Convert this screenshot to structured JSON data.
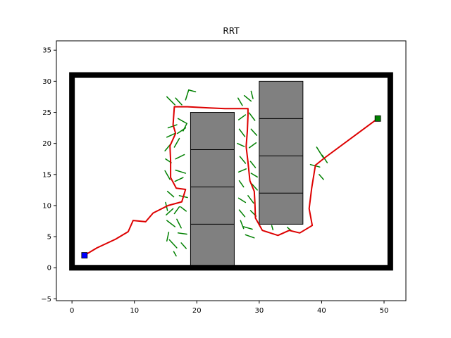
{
  "chart_data": {
    "type": "scatter",
    "title": "RRT",
    "xlabel": "",
    "ylabel": "",
    "xlim": [
      -2.5,
      53.5
    ],
    "ylim": [
      -5.3,
      36.5
    ],
    "xticks": [
      0,
      10,
      20,
      30,
      40,
      50
    ],
    "yticks": [
      -5,
      0,
      5,
      10,
      15,
      20,
      25,
      30,
      35
    ],
    "grid": false,
    "legend": "none",
    "colors": {
      "boundary": "#000000",
      "obstacle_fill": "#808080",
      "tree": "#008000",
      "path": "#dd0000",
      "start": "#0000ff",
      "goal": "#008000"
    },
    "boundary": {
      "x": [
        0,
        51
      ],
      "y": [
        0,
        31
      ]
    },
    "obstacles": [
      {
        "x": [
          19,
          26
        ],
        "y": [
          0,
          25
        ]
      },
      {
        "x": [
          30,
          37
        ],
        "y": [
          7,
          30
        ]
      }
    ],
    "obstacle_dividers": [
      {
        "x": [
          19,
          26
        ],
        "y": 19
      },
      {
        "x": [
          19,
          26
        ],
        "y": 13
      },
      {
        "x": [
          19,
          26
        ],
        "y": 7
      },
      {
        "x": [
          30,
          37
        ],
        "y": 24
      },
      {
        "x": [
          30,
          37
        ],
        "y": 18
      },
      {
        "x": [
          30,
          37
        ],
        "y": 12
      }
    ],
    "start": [
      2,
      2
    ],
    "goal": [
      49,
      24
    ],
    "path": [
      [
        2,
        2
      ],
      [
        4,
        3.2
      ],
      [
        7,
        4.6
      ],
      [
        9,
        5.8
      ],
      [
        9.8,
        7.6
      ],
      [
        11.8,
        7.4
      ],
      [
        13,
        8.8
      ],
      [
        15.4,
        10
      ],
      [
        17.6,
        10.6
      ],
      [
        18.2,
        12.6
      ],
      [
        16.7,
        12.8
      ],
      [
        15.8,
        14.5
      ],
      [
        15.8,
        17.2
      ],
      [
        15.7,
        19.6
      ],
      [
        16.6,
        21.6
      ],
      [
        16.2,
        23
      ],
      [
        16.4,
        25.9
      ],
      [
        18.5,
        25.9
      ],
      [
        22,
        25.7
      ],
      [
        24.5,
        25.6
      ],
      [
        28.2,
        25.6
      ],
      [
        28.2,
        24.5
      ],
      [
        28.1,
        22
      ],
      [
        27.9,
        19.5
      ],
      [
        28.2,
        17
      ],
      [
        28.5,
        14
      ],
      [
        29.2,
        12.3
      ],
      [
        29.3,
        10.5
      ],
      [
        29.4,
        8
      ],
      [
        30.5,
        6
      ],
      [
        33,
        5.2
      ],
      [
        34.8,
        6
      ],
      [
        36.5,
        5.6
      ],
      [
        38.5,
        6.8
      ],
      [
        38,
        9.5
      ],
      [
        38.4,
        12.8
      ],
      [
        39,
        16.5
      ],
      [
        40.5,
        17.7
      ],
      [
        49,
        24
      ]
    ],
    "tree_edges": [
      [
        [
          15.2,
          27.5
        ],
        [
          16.5,
          26.2
        ]
      ],
      [
        [
          16.6,
          27.3
        ],
        [
          17.6,
          26.2
        ]
      ],
      [
        [
          18.2,
          27
        ],
        [
          18.7,
          28.6
        ]
      ],
      [
        [
          18.7,
          28.6
        ],
        [
          19.8,
          28.3
        ]
      ],
      [
        [
          15.4,
          22.5
        ],
        [
          16.8,
          23
        ]
      ],
      [
        [
          15.2,
          21
        ],
        [
          16.5,
          21.6
        ]
      ],
      [
        [
          17,
          24
        ],
        [
          18.4,
          23.2
        ]
      ],
      [
        [
          18.4,
          23.2
        ],
        [
          17.8,
          22
        ]
      ],
      [
        [
          16.9,
          21.6
        ],
        [
          18.2,
          22.5
        ]
      ],
      [
        [
          14.9,
          18.8
        ],
        [
          15.9,
          20
        ]
      ],
      [
        [
          16.4,
          19.4
        ],
        [
          17.2,
          20.8
        ]
      ],
      [
        [
          15,
          17.5
        ],
        [
          15.9,
          16.9
        ]
      ],
      [
        [
          16.6,
          17.5
        ],
        [
          18,
          18.2
        ]
      ],
      [
        [
          16.6,
          15.7
        ],
        [
          18.2,
          15.2
        ]
      ],
      [
        [
          14.9,
          15.6
        ],
        [
          15.7,
          14.2
        ]
      ],
      [
        [
          16.5,
          13.9
        ],
        [
          17.8,
          14.5
        ]
      ],
      [
        [
          15.3,
          12.3
        ],
        [
          16.3,
          11.4
        ]
      ],
      [
        [
          17.2,
          11.6
        ],
        [
          18.5,
          11.3
        ]
      ],
      [
        [
          15,
          10.5
        ],
        [
          15.3,
          9.2
        ]
      ],
      [
        [
          15.1,
          8.5
        ],
        [
          16.2,
          9.5
        ]
      ],
      [
        [
          16.4,
          8.7
        ],
        [
          17.2,
          9.8
        ]
      ],
      [
        [
          17.4,
          9.8
        ],
        [
          18.3,
          9.1
        ]
      ],
      [
        [
          15.2,
          7.6
        ],
        [
          16.5,
          6.6
        ]
      ],
      [
        [
          15.5,
          5.7
        ],
        [
          15.2,
          4.3
        ]
      ],
      [
        [
          16.8,
          7.8
        ],
        [
          17.5,
          6.4
        ]
      ],
      [
        [
          17,
          5.6
        ],
        [
          18.4,
          5.4
        ]
      ],
      [
        [
          15.6,
          4.5
        ],
        [
          16.8,
          3.2
        ]
      ],
      [
        [
          16.3,
          2.6
        ],
        [
          16.7,
          1.9
        ]
      ],
      [
        [
          17.5,
          4
        ],
        [
          18.3,
          3.1
        ]
      ],
      [
        [
          26.6,
          27.3
        ],
        [
          27.3,
          26.1
        ]
      ],
      [
        [
          27.6,
          27.7
        ],
        [
          28.7,
          26.8
        ]
      ],
      [
        [
          28.7,
          28.4
        ],
        [
          29,
          27.2
        ]
      ],
      [
        [
          26.7,
          23.8
        ],
        [
          27.8,
          24.6
        ]
      ],
      [
        [
          28.4,
          24.9
        ],
        [
          29.3,
          23.7
        ]
      ],
      [
        [
          26.8,
          22.3
        ],
        [
          27.7,
          21.1
        ]
      ],
      [
        [
          28.7,
          22.3
        ],
        [
          29.6,
          21.3
        ]
      ],
      [
        [
          26.5,
          20
        ],
        [
          27.6,
          19.5
        ]
      ],
      [
        [
          28.4,
          19.3
        ],
        [
          29.5,
          20.1
        ]
      ],
      [
        [
          26.9,
          17.9
        ],
        [
          27.8,
          16.8
        ]
      ],
      [
        [
          28.6,
          17.1
        ],
        [
          29.4,
          16.1
        ]
      ],
      [
        [
          26.7,
          15.4
        ],
        [
          27.9,
          15.9
        ]
      ],
      [
        [
          28.7,
          15.2
        ],
        [
          29.7,
          14.6
        ]
      ],
      [
        [
          26.8,
          14
        ],
        [
          27.5,
          13
        ]
      ],
      [
        [
          28.8,
          13.5
        ],
        [
          29.7,
          12.5
        ]
      ],
      [
        [
          26.7,
          11.2
        ],
        [
          27.8,
          10.5
        ]
      ],
      [
        [
          28.2,
          11.6
        ],
        [
          29.1,
          10.4
        ]
      ],
      [
        [
          26.8,
          9.3
        ],
        [
          27.7,
          8.2
        ]
      ],
      [
        [
          28.6,
          9.2
        ],
        [
          29.5,
          8.3
        ]
      ],
      [
        [
          27,
          7.6
        ],
        [
          27.5,
          6.3
        ]
      ],
      [
        [
          27.5,
          6.6
        ],
        [
          28.9,
          6.2
        ]
      ],
      [
        [
          27.8,
          5.3
        ],
        [
          29.2,
          4.8
        ]
      ],
      [
        [
          32.2,
          6.1
        ],
        [
          32,
          6.8
        ]
      ],
      [
        [
          34.5,
          6.5
        ],
        [
          35.2,
          5.9
        ]
      ],
      [
        [
          40.1,
          18.1
        ],
        [
          40.9,
          16.9
        ]
      ],
      [
        [
          39.6,
          15
        ],
        [
          40.3,
          14.2
        ]
      ],
      [
        [
          38.2,
          16.6
        ],
        [
          39.7,
          16.2
        ]
      ],
      [
        [
          39.2,
          19.4
        ],
        [
          40.2,
          17.8
        ]
      ]
    ]
  }
}
